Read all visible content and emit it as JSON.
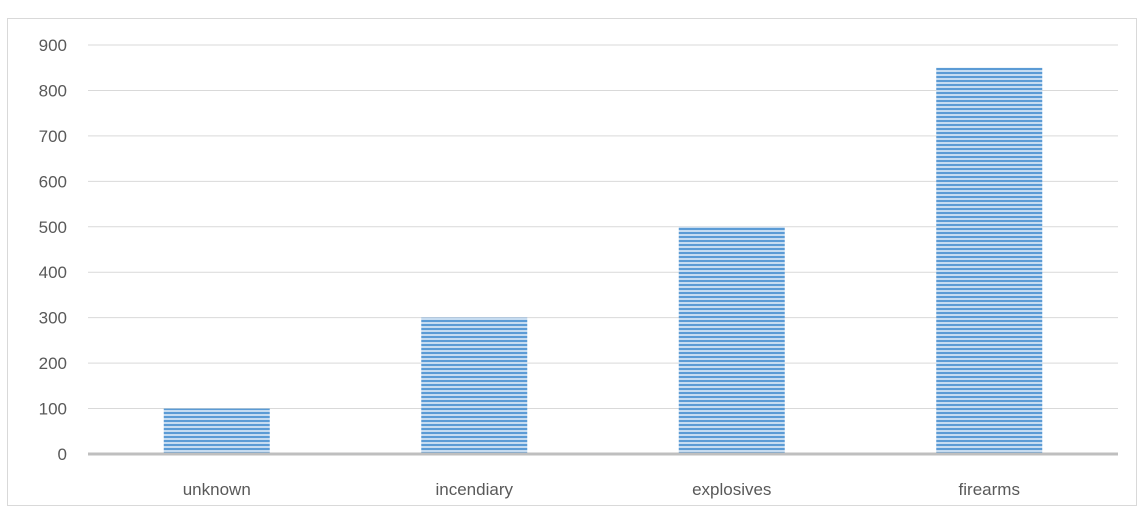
{
  "chart_data": {
    "type": "bar",
    "title": "",
    "xlabel": "",
    "ylabel": "",
    "categories": [
      "unknown",
      "incendiary",
      "explosives",
      "firearms"
    ],
    "values": [
      100,
      300,
      500,
      850
    ],
    "ylim": [
      0,
      900
    ],
    "yticks": [
      "0",
      "100",
      "200",
      "300",
      "400",
      "500",
      "600",
      "700",
      "800",
      "900"
    ],
    "grid": true,
    "legend": "none",
    "bar_fill": "horizontal-stripes",
    "colors": {
      "bar": "#5b9bd5",
      "bar_light": "#c6dcf1",
      "grid": "#d9d9d9",
      "axis": "#bfbfbf",
      "text": "#595959"
    }
  }
}
